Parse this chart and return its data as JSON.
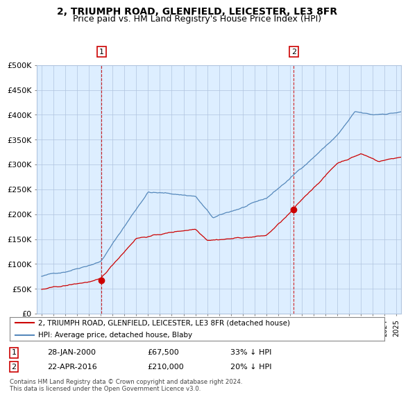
{
  "title": "2, TRIUMPH ROAD, GLENFIELD, LEICESTER, LE3 8FR",
  "subtitle": "Price paid vs. HM Land Registry's House Price Index (HPI)",
  "ylim": [
    0,
    500000
  ],
  "yticks": [
    0,
    50000,
    100000,
    150000,
    200000,
    250000,
    300000,
    350000,
    400000,
    450000,
    500000
  ],
  "ytick_labels": [
    "£0",
    "£50K",
    "£100K",
    "£150K",
    "£200K",
    "£250K",
    "£300K",
    "£350K",
    "£400K",
    "£450K",
    "£500K"
  ],
  "xlim_start": 1994.6,
  "xlim_end": 2025.4,
  "sale1_x": 2000.07,
  "sale1_y": 67500,
  "sale1_label": "1",
  "sale1_date": "28-JAN-2000",
  "sale1_price": "£67,500",
  "sale1_hpi": "33% ↓ HPI",
  "sale2_x": 2016.31,
  "sale2_y": 210000,
  "sale2_label": "2",
  "sale2_date": "22-APR-2016",
  "sale2_price": "£210,000",
  "sale2_hpi": "20% ↓ HPI",
  "red_color": "#cc0000",
  "blue_color": "#5588bb",
  "plot_bg_color": "#ddeeff",
  "legend_line1": "2, TRIUMPH ROAD, GLENFIELD, LEICESTER, LE3 8FR (detached house)",
  "legend_line2": "HPI: Average price, detached house, Blaby",
  "footer": "Contains HM Land Registry data © Crown copyright and database right 2024.\nThis data is licensed under the Open Government Licence v3.0.",
  "title_fontsize": 10,
  "subtitle_fontsize": 9,
  "axis_fontsize": 8,
  "background_color": "#ffffff"
}
